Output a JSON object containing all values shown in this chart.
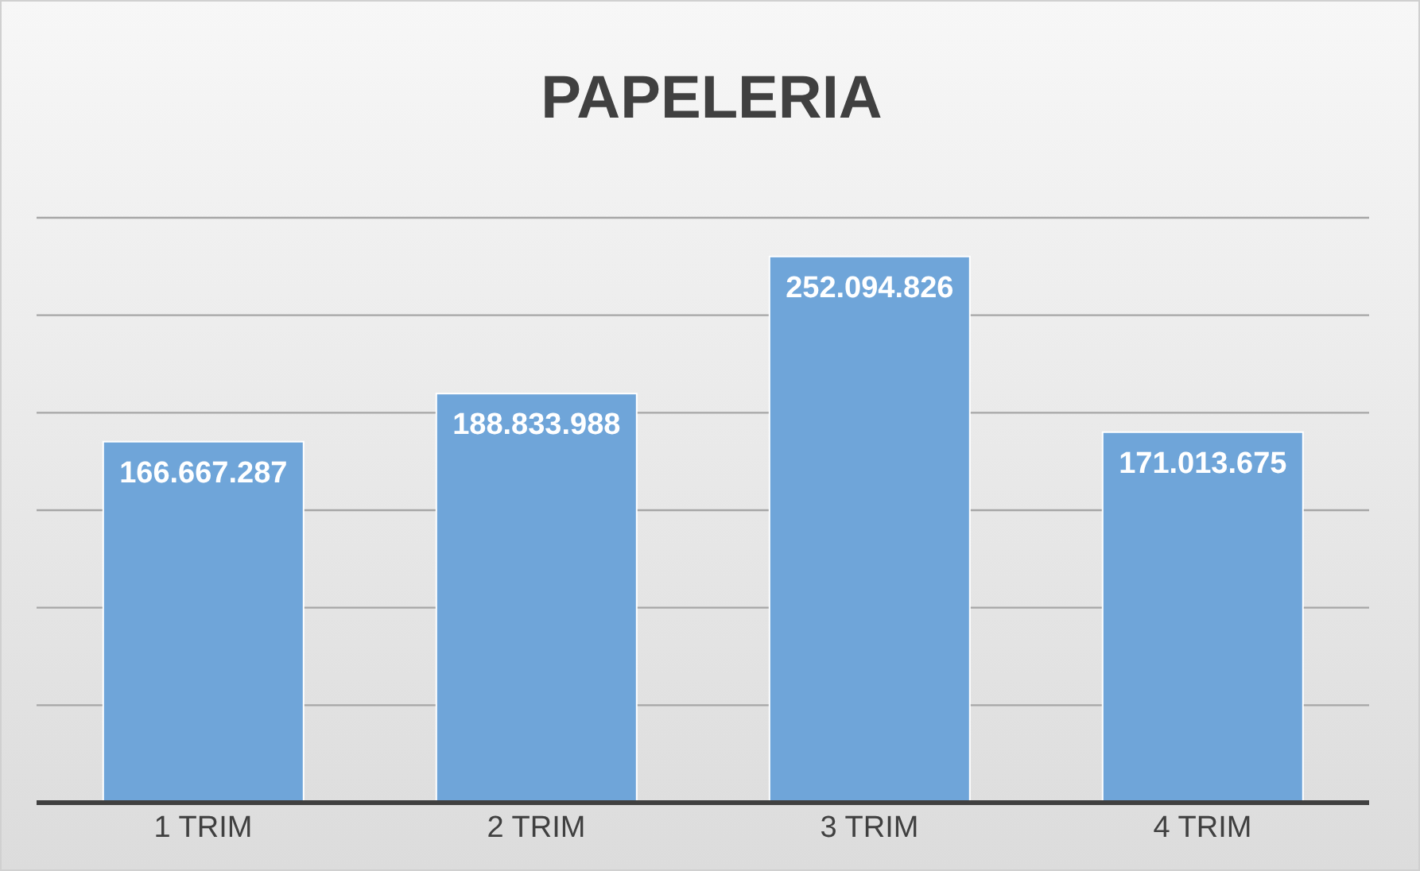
{
  "chart_data": {
    "type": "bar",
    "title": "PAPELERIA",
    "categories": [
      "1 TRIM",
      "2 TRIM",
      "3 TRIM",
      "4 TRIM"
    ],
    "values": [
      166667287,
      188833988,
      252094826,
      171013675
    ],
    "color": "#6fa5d9",
    "value_labels": [
      "166.667.287",
      "188.833.988",
      "252.094.826",
      "171.013.675"
    ],
    "tick_labels": "x",
    "grid": "y"
  }
}
